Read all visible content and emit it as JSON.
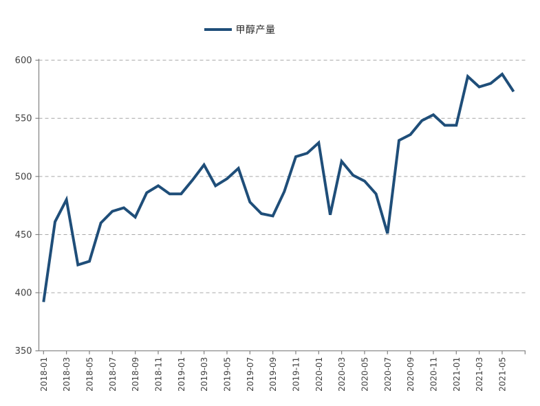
{
  "chart_data": {
    "type": "line",
    "legend": [
      "甲醇产量"
    ],
    "legend_position": "top-center",
    "x": [
      "2018-01",
      "2018-02",
      "2018-03",
      "2018-04",
      "2018-05",
      "2018-06",
      "2018-07",
      "2018-08",
      "2018-09",
      "2018-10",
      "2018-11",
      "2018-12",
      "2019-01",
      "2019-02",
      "2019-03",
      "2019-04",
      "2019-05",
      "2019-06",
      "2019-07",
      "2019-08",
      "2019-09",
      "2019-10",
      "2019-11",
      "2019-12",
      "2020-01",
      "2020-02",
      "2020-03",
      "2020-04",
      "2020-05",
      "2020-06",
      "2020-07",
      "2020-08",
      "2020-09",
      "2020-10",
      "2020-11",
      "2020-12",
      "2021-01",
      "2021-02",
      "2021-03",
      "2021-04",
      "2021-05",
      "2021-06"
    ],
    "series": [
      {
        "name": "甲醇产量",
        "color": "#1F4E79",
        "values": [
          392,
          461,
          480,
          424,
          427,
          460,
          470,
          473,
          465,
          486,
          492,
          485,
          485,
          497,
          510,
          492,
          498,
          507,
          478,
          468,
          466,
          487,
          517,
          520,
          529,
          467,
          513,
          501,
          496,
          485,
          451,
          531,
          536,
          548,
          553,
          544,
          544,
          586,
          577,
          580,
          588,
          573
        ]
      }
    ],
    "ylim": [
      350,
      600
    ],
    "y_ticks": [
      350,
      400,
      450,
      500,
      550,
      600
    ],
    "x_tick_interval_months": 2,
    "x_tick_labels": [
      "2018-01",
      "2018-03",
      "2018-05",
      "2018-07",
      "2018-09",
      "2018-11",
      "2019-01",
      "2019-03",
      "2019-05",
      "2019-07",
      "2019-09",
      "2019-11",
      "2020-01",
      "2020-03",
      "2020-05",
      "2020-07",
      "2020-09",
      "2020-11",
      "2021-01",
      "2021-03",
      "2021-05"
    ],
    "grid": "horizontal-dashed",
    "colors": {
      "line": "#1F4E79",
      "grid": "#A6A6A6",
      "axis": "#808080",
      "tick_label": "#404040",
      "background": "#FFFFFF"
    }
  }
}
